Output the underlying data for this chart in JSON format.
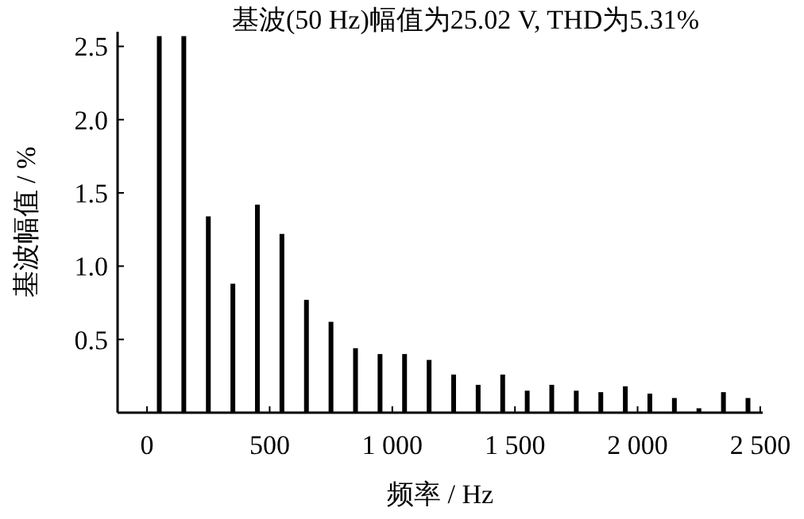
{
  "chart_data": {
    "type": "bar",
    "title": "基波(50 Hz)幅值为25.02 V, THD为5.31%",
    "xlabel": "频率 / Hz",
    "ylabel": "基波幅值 / %",
    "x": [
      50,
      150,
      250,
      350,
      450,
      550,
      650,
      750,
      850,
      950,
      1050,
      1150,
      1250,
      1350,
      1450,
      1550,
      1650,
      1750,
      1850,
      1950,
      2050,
      2150,
      2250,
      2350,
      2450
    ],
    "values": [
      2.57,
      2.57,
      1.34,
      0.88,
      1.42,
      1.22,
      0.77,
      0.62,
      0.44,
      0.4,
      0.4,
      0.36,
      0.26,
      0.19,
      0.26,
      0.15,
      0.19,
      0.15,
      0.14,
      0.18,
      0.13,
      0.1,
      0.03,
      0.14,
      0.1
    ],
    "color": "#000000",
    "xlim": [
      -120,
      2510
    ],
    "ylim": [
      0,
      2.6
    ],
    "xticks": [
      0,
      500,
      {
        "value": 1000,
        "label": "1 000"
      },
      {
        "value": 1500,
        "label": "1 500"
      },
      {
        "value": 2000,
        "label": "2 000"
      },
      {
        "value": 2500,
        "label": "2 500"
      }
    ],
    "yticks": [
      {
        "value": 0.5,
        "label": "0.5"
      },
      {
        "value": 1,
        "label": "1.0"
      },
      {
        "value": 1.5,
        "label": "1.5"
      },
      {
        "value": 2,
        "label": "2.0"
      },
      {
        "value": 2.5,
        "label": "2.5"
      }
    ],
    "grid": false
  }
}
